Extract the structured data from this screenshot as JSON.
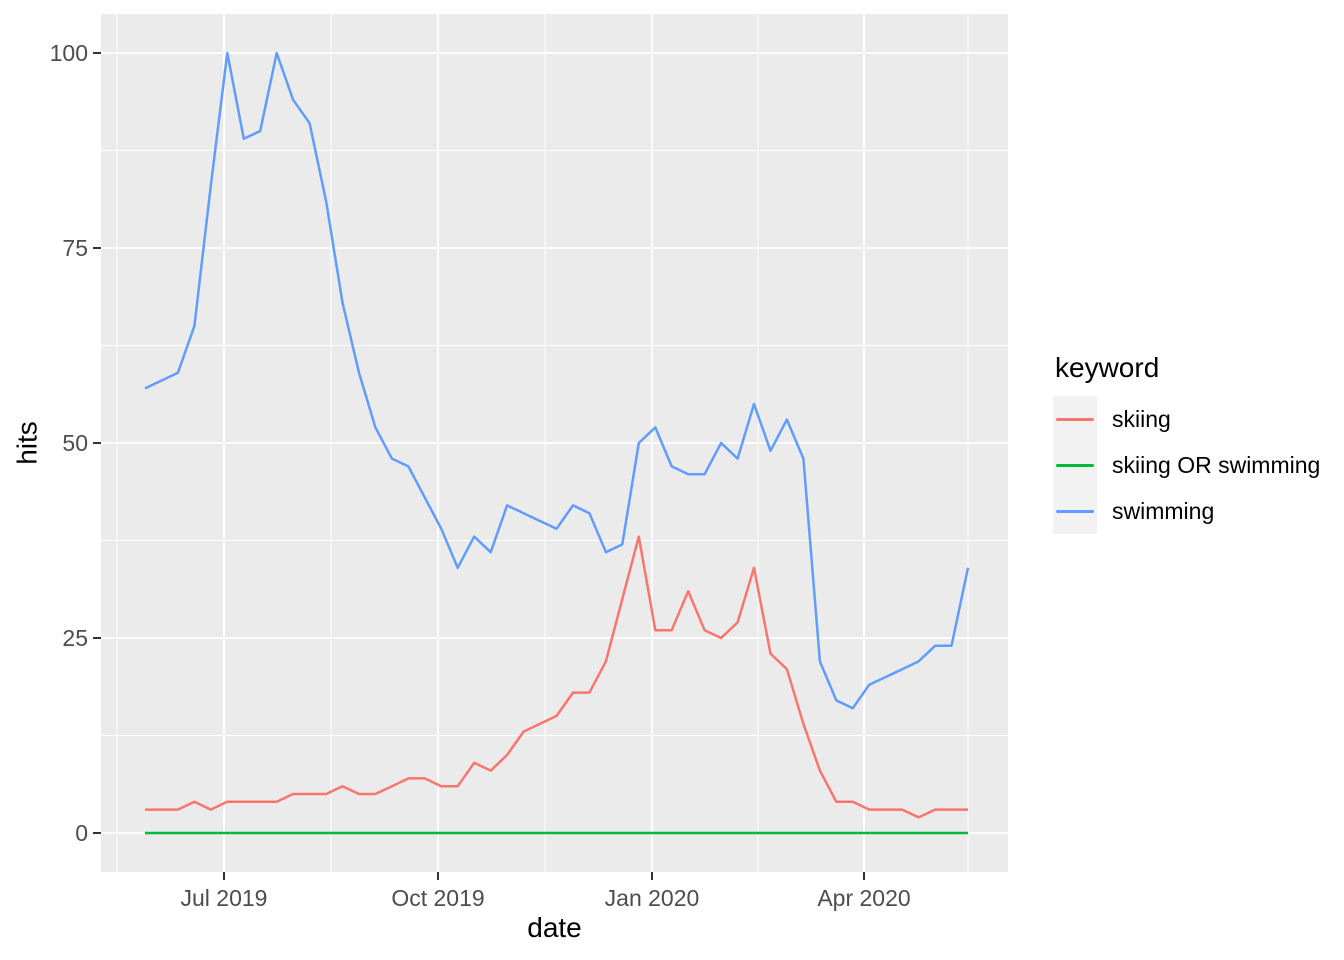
{
  "figure": {
    "background": "#FFFFFF",
    "panel_bg": "#EBEBEB",
    "grid_color": "#FFFFFF",
    "tick_mark_color": "#333333",
    "tick_label_color": "#4D4D4D",
    "x_axis": {
      "title": "date",
      "tick_labels": [
        "Jul 2019",
        "Oct 2019",
        "Jan 2020",
        "Apr 2020"
      ]
    },
    "y_axis": {
      "title": "hits",
      "tick_labels": [
        "0",
        "25",
        "50",
        "75",
        "100"
      ]
    },
    "legend": {
      "title": "keyword",
      "key_bg": "#F2F2F2",
      "items": [
        {
          "label": "skiing",
          "color": "#F8766D"
        },
        {
          "label": "skiing OR swimming",
          "color": "#00BA38"
        },
        {
          "label": "swimming",
          "color": "#619CFF"
        }
      ]
    }
  },
  "chart_data": {
    "type": "line",
    "title": "",
    "xlabel": "date",
    "ylabel": "hits",
    "legend_title": "keyword",
    "legend_position": "right",
    "grid": true,
    "ylim": [
      0,
      100
    ],
    "y_ticks": [
      0,
      25,
      50,
      75,
      100
    ],
    "y_minor_ticks": [
      12.5,
      37.5,
      62.5,
      87.5
    ],
    "x_tick_labels": [
      "Jul 2019",
      "Oct 2019",
      "Jan 2020",
      "Apr 2020"
    ],
    "x": [
      "2019-06-02",
      "2019-06-09",
      "2019-06-16",
      "2019-06-23",
      "2019-06-30",
      "2019-07-07",
      "2019-07-14",
      "2019-07-21",
      "2019-07-28",
      "2019-08-04",
      "2019-08-11",
      "2019-08-18",
      "2019-08-25",
      "2019-09-01",
      "2019-09-08",
      "2019-09-15",
      "2019-09-22",
      "2019-09-29",
      "2019-10-06",
      "2019-10-13",
      "2019-10-20",
      "2019-10-27",
      "2019-11-03",
      "2019-11-10",
      "2019-11-17",
      "2019-11-24",
      "2019-12-01",
      "2019-12-08",
      "2019-12-15",
      "2019-12-22",
      "2019-12-29",
      "2020-01-05",
      "2020-01-12",
      "2020-01-19",
      "2020-01-26",
      "2020-02-02",
      "2020-02-09",
      "2020-02-16",
      "2020-02-23",
      "2020-03-01",
      "2020-03-08",
      "2020-03-15",
      "2020-03-22",
      "2020-03-29",
      "2020-04-05",
      "2020-04-12",
      "2020-04-19",
      "2020-04-26",
      "2020-05-03",
      "2020-05-10",
      "2020-05-17"
    ],
    "series": [
      {
        "name": "skiing",
        "color": "#F8766D",
        "values": [
          3,
          3,
          3,
          4,
          3,
          4,
          4,
          4,
          4,
          5,
          5,
          5,
          6,
          5,
          5,
          6,
          7,
          7,
          6,
          6,
          9,
          8,
          10,
          13,
          14,
          15,
          18,
          18,
          22,
          30,
          38,
          26,
          26,
          31,
          26,
          25,
          27,
          34,
          23,
          21,
          14,
          8,
          4,
          4,
          3,
          3,
          3,
          2,
          3,
          3,
          3
        ]
      },
      {
        "name": "skiing OR swimming",
        "color": "#00BA38",
        "values": [
          0,
          0,
          0,
          0,
          0,
          0,
          0,
          0,
          0,
          0,
          0,
          0,
          0,
          0,
          0,
          0,
          0,
          0,
          0,
          0,
          0,
          0,
          0,
          0,
          0,
          0,
          0,
          0,
          0,
          0,
          0,
          0,
          0,
          0,
          0,
          0,
          0,
          0,
          0,
          0,
          0,
          0,
          0,
          0,
          0,
          0,
          0,
          0,
          0,
          0,
          0
        ]
      },
      {
        "name": "swimming",
        "color": "#619CFF",
        "values": [
          57,
          58,
          59,
          65,
          83,
          100,
          89,
          90,
          100,
          94,
          91,
          81,
          68,
          59,
          52,
          48,
          47,
          43,
          39,
          34,
          38,
          36,
          42,
          41,
          40,
          39,
          42,
          41,
          36,
          37,
          50,
          52,
          47,
          46,
          46,
          50,
          48,
          55,
          49,
          53,
          48,
          22,
          17,
          16,
          19,
          20,
          21,
          22,
          24,
          24,
          34
        ]
      }
    ]
  }
}
